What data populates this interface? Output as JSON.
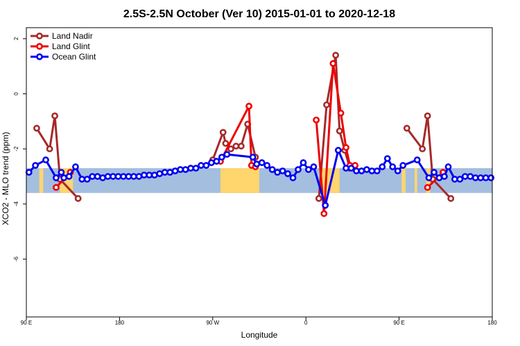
{
  "chart_data": {
    "type": "line",
    "title": "2.5S-2.5N October (Ver 10)   2015-01-01 to 2020-12-18",
    "xlabel": "Longitude",
    "ylabel": "XCO2 - MLO trend (ppm)",
    "xlim": [
      0,
      360
    ],
    "ylim": [
      -8.1,
      2.4
    ],
    "x_ticks": [
      {
        "pos": 0,
        "label": "90 E"
      },
      {
        "pos": 72,
        "label": "180"
      },
      {
        "pos": 144,
        "label": "90 W"
      },
      {
        "pos": 216,
        "label": "0"
      },
      {
        "pos": 288,
        "label": "90 E"
      },
      {
        "pos": 360,
        "label": "180"
      }
    ],
    "y_ticks": [
      {
        "value": 2,
        "label": "2"
      },
      {
        "value": 0,
        "label": "0"
      },
      {
        "value": -2,
        "label": "-2"
      },
      {
        "value": -4,
        "label": "-4"
      },
      {
        "value": -6,
        "label": "-6"
      }
    ],
    "band": {
      "ymin": -3.6,
      "ymax": -2.7,
      "land_color": "#FFD56E",
      "ocean_color": "#A4BEE0",
      "land_segments": [
        [
          10,
          13
        ],
        [
          26,
          36
        ],
        [
          150,
          180
        ],
        [
          228,
          242
        ],
        [
          290,
          293
        ],
        [
          300,
          302
        ],
        [
          309,
          312
        ]
      ]
    },
    "legend": {
      "position": "top-left",
      "entries": [
        {
          "name": "Land Nadir",
          "color": "#A52A2A"
        },
        {
          "name": "Land Glint",
          "color": "#EE0000"
        },
        {
          "name": "Ocean Glint",
          "color": "#0000EE"
        }
      ]
    },
    "series": [
      {
        "name": "Land Nadir",
        "color": "#A52A2A",
        "points": [
          [
            8,
            -1.25
          ],
          [
            18,
            -2.0
          ],
          [
            22,
            -0.8
          ],
          [
            26,
            -3.1
          ],
          [
            40,
            -3.8
          ],
          [
            144,
            -2.4
          ],
          [
            152,
            -1.4
          ],
          [
            154,
            -1.8
          ],
          [
            158,
            -2.0
          ],
          [
            162,
            -1.9
          ],
          [
            166,
            -1.9
          ],
          [
            171,
            -1.1
          ],
          [
            177,
            -2.3
          ],
          [
            226,
            -3.8
          ],
          [
            232,
            -0.4
          ],
          [
            239,
            1.4
          ],
          [
            242,
            -1.35
          ],
          [
            246,
            -2.05
          ],
          [
            250,
            -2.7
          ],
          [
            294,
            -1.25
          ],
          [
            306,
            -2.0
          ],
          [
            310,
            -0.8
          ],
          [
            314,
            -3.1
          ],
          [
            328,
            -3.8
          ]
        ],
        "breaks_before": [
          5,
          13,
          19
        ]
      },
      {
        "name": "Land Glint",
        "color": "#EE0000",
        "points": [
          [
            23,
            -3.4
          ],
          [
            34,
            -2.85
          ],
          [
            150,
            -2.45
          ],
          [
            172,
            -0.45
          ],
          [
            174,
            -2.6
          ],
          [
            177,
            -2.65
          ],
          [
            224,
            -0.95
          ],
          [
            230,
            -4.35
          ],
          [
            237,
            1.1
          ],
          [
            243,
            -0.7
          ],
          [
            247,
            -1.95
          ],
          [
            250,
            -2.6
          ],
          [
            254,
            -2.6
          ],
          [
            310,
            -3.4
          ],
          [
            322,
            -2.85
          ]
        ],
        "breaks_before": [
          2,
          6,
          13
        ]
      },
      {
        "name": "Ocean Glint",
        "color": "#0000EE",
        "points": [
          [
            2,
            -2.85
          ],
          [
            7,
            -2.6
          ],
          [
            15,
            -2.4
          ],
          [
            23,
            -3.05
          ],
          [
            27,
            -2.85
          ],
          [
            29,
            -3.05
          ],
          [
            33,
            -3.0
          ],
          [
            38,
            -2.65
          ],
          [
            43,
            -3.1
          ],
          [
            47,
            -3.1
          ],
          [
            51,
            -3.0
          ],
          [
            55,
            -3.0
          ],
          [
            59,
            -3.05
          ],
          [
            63,
            -3.0
          ],
          [
            67,
            -3.0
          ],
          [
            71,
            -3.0
          ],
          [
            75,
            -3.0
          ],
          [
            79,
            -3.0
          ],
          [
            83,
            -3.0
          ],
          [
            87,
            -3.0
          ],
          [
            91,
            -2.95
          ],
          [
            95,
            -2.95
          ],
          [
            99,
            -2.95
          ],
          [
            103,
            -2.9
          ],
          [
            107,
            -2.85
          ],
          [
            111,
            -2.85
          ],
          [
            115,
            -2.8
          ],
          [
            119,
            -2.75
          ],
          [
            123,
            -2.75
          ],
          [
            127,
            -2.7
          ],
          [
            131,
            -2.7
          ],
          [
            135,
            -2.6
          ],
          [
            139,
            -2.6
          ],
          [
            143,
            -2.5
          ],
          [
            147,
            -2.45
          ],
          [
            151,
            -2.3
          ],
          [
            155,
            -2.2
          ],
          [
            175,
            -2.3
          ],
          [
            178,
            -2.55
          ],
          [
            182,
            -2.5
          ],
          [
            186,
            -2.6
          ],
          [
            190,
            -2.75
          ],
          [
            194,
            -2.85
          ],
          [
            198,
            -2.8
          ],
          [
            202,
            -2.9
          ],
          [
            206,
            -3.05
          ],
          [
            210,
            -2.75
          ],
          [
            214,
            -2.5
          ],
          [
            218,
            -2.75
          ],
          [
            222,
            -2.65
          ],
          [
            231,
            -4.05
          ],
          [
            241,
            -2.05
          ],
          [
            247,
            -2.7
          ],
          [
            251,
            -2.7
          ],
          [
            255,
            -2.8
          ],
          [
            259,
            -2.8
          ],
          [
            263,
            -2.75
          ],
          [
            267,
            -2.8
          ],
          [
            271,
            -2.8
          ],
          [
            275,
            -2.65
          ],
          [
            279,
            -2.35
          ],
          [
            283,
            -2.65
          ],
          [
            287,
            -2.8
          ],
          [
            291,
            -2.6
          ],
          [
            302,
            -2.4
          ],
          [
            311,
            -3.05
          ],
          [
            315,
            -2.85
          ],
          [
            319,
            -3.05
          ],
          [
            323,
            -3.0
          ],
          [
            326,
            -2.65
          ],
          [
            331,
            -3.1
          ],
          [
            335,
            -3.1
          ],
          [
            339,
            -3.0
          ],
          [
            343,
            -3.0
          ],
          [
            347,
            -3.05
          ],
          [
            351,
            -3.05
          ],
          [
            355,
            -3.05
          ],
          [
            359,
            -3.05
          ]
        ],
        "breaks_before": []
      }
    ]
  }
}
